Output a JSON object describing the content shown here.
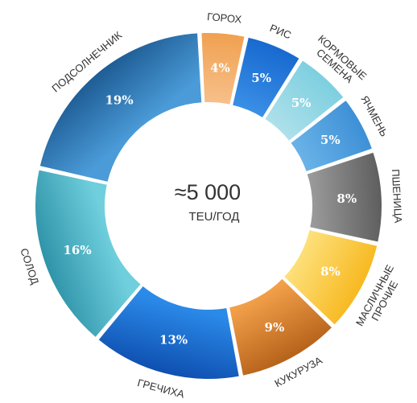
{
  "chart_data": {
    "type": "pie",
    "center_value": "≈5 000",
    "center_unit": "TEU/ГОД",
    "slices": [
      {
        "label": "ГОРОХ",
        "value": 4,
        "display": "4%",
        "color_from": "#f7c08a",
        "color_to": "#f0a050"
      },
      {
        "label": "РИС",
        "value": 5,
        "display": "5%",
        "color_from": "#3a8fe6",
        "color_to": "#1769cf"
      },
      {
        "label": "КОРМОВЫЕ СЕМЕНА",
        "value": 5,
        "display": "5%",
        "color_from": "#aee0ea",
        "color_to": "#7ccfe0"
      },
      {
        "label": "ЯЧМЕНЬ",
        "value": 5,
        "display": "5%",
        "color_from": "#6ab3e8",
        "color_to": "#3d8fd6"
      },
      {
        "label": "ПШЕНИЦА",
        "value": 8,
        "display": "8%",
        "color_from": "#9a9a9a",
        "color_to": "#5d5d5d"
      },
      {
        "label": "МАСЛИЧНЫЕ ПРОЧИЕ",
        "value": 8,
        "display": "8%",
        "color_from": "#fde07a",
        "color_to": "#f7b81f"
      },
      {
        "label": "КУКУРУЗА",
        "value": 9,
        "display": "9%",
        "color_from": "#f3a04a",
        "color_to": "#b5621a"
      },
      {
        "label": "ГРЕЧИХА",
        "value": 13,
        "display": "13%",
        "color_from": "#2b8ae8",
        "color_to": "#0e4fb0"
      },
      {
        "label": "СОЛОД",
        "value": 16,
        "display": "16%",
        "color_from": "#6fcfdd",
        "color_to": "#2f93a8"
      },
      {
        "label": "ПОДСОЛНЕЧНИК",
        "value": 19,
        "display": "19%",
        "color_from": "#4a9bd8",
        "color_to": "#1e5c94"
      }
    ]
  }
}
